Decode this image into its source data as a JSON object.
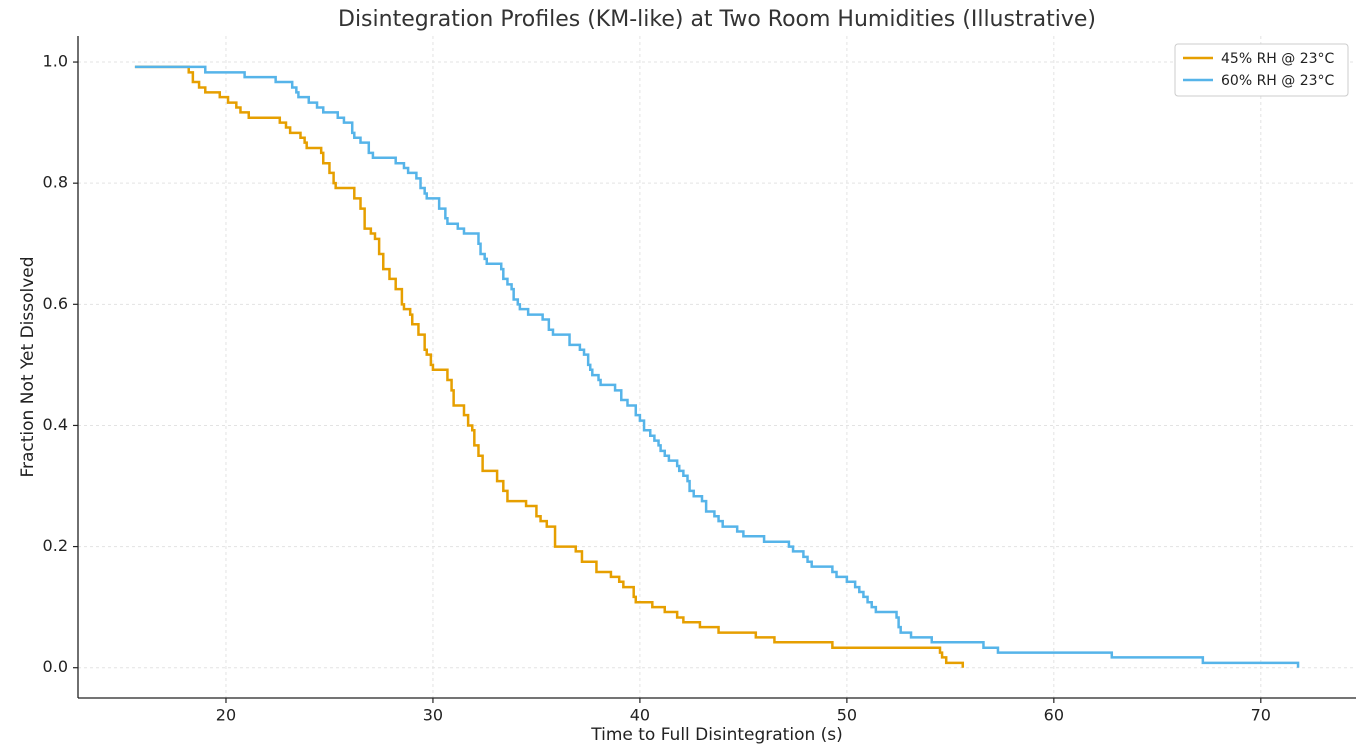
{
  "chart_data": {
    "type": "step",
    "title": "Disintegration Profiles (KM-like) at Two Room Humidities (Illustrative)",
    "x_label": "Time to Full Disintegration (s)",
    "y_label": "Fraction Not Yet Dissolved",
    "xlim": [
      12.85,
      74.6
    ],
    "ylim": [
      -0.05,
      1.043
    ],
    "xticks": [
      20,
      30,
      40,
      50,
      60,
      70
    ],
    "yticks": [
      {
        "value": 0,
        "label": "0.0"
      },
      0.2,
      0.4,
      0.6,
      0.8,
      {
        "value": 1,
        "label": "1.0"
      }
    ],
    "grid": true,
    "legend": "upper right",
    "series": [
      {
        "name": "45% RH @ 23°C",
        "color": "#e69f00",
        "x": [
          15.6,
          18.2,
          18.4,
          18.7,
          19.0,
          19.7,
          20.1,
          20.5,
          20.7,
          21.1,
          22.6,
          22.9,
          23.1,
          23.6,
          23.8,
          23.9,
          24.6,
          24.7,
          25.0,
          25.2,
          25.3,
          26.2,
          26.5,
          26.7,
          27.0,
          27.2,
          27.4,
          27.6,
          27.9,
          28.2,
          28.5,
          28.6,
          28.9,
          29.0,
          29.3,
          29.6,
          29.7,
          29.9,
          30.0,
          30.7,
          30.9,
          31.0,
          31.5,
          31.7,
          31.9,
          32.0,
          32.2,
          32.4,
          33.1,
          33.4,
          33.6,
          34.5,
          35.0,
          35.2,
          35.5,
          35.9,
          36.9,
          37.2,
          37.9,
          38.6,
          39.0,
          39.2,
          39.7,
          39.8,
          40.6,
          41.2,
          41.8,
          42.1,
          42.9,
          43.8,
          45.6,
          46.5,
          49.3,
          54.5,
          54.6,
          54.8,
          55.6
        ],
        "values": [
          0.992,
          0.983,
          0.967,
          0.958,
          0.95,
          0.942,
          0.933,
          0.925,
          0.917,
          0.908,
          0.9,
          0.892,
          0.883,
          0.875,
          0.867,
          0.858,
          0.85,
          0.833,
          0.817,
          0.8,
          0.792,
          0.775,
          0.758,
          0.725,
          0.717,
          0.708,
          0.683,
          0.658,
          0.642,
          0.625,
          0.6,
          0.592,
          0.583,
          0.567,
          0.55,
          0.525,
          0.517,
          0.5,
          0.492,
          0.475,
          0.458,
          0.433,
          0.417,
          0.4,
          0.392,
          0.367,
          0.35,
          0.325,
          0.308,
          0.292,
          0.275,
          0.267,
          0.25,
          0.242,
          0.233,
          0.2,
          0.192,
          0.175,
          0.158,
          0.15,
          0.142,
          0.133,
          0.117,
          0.108,
          0.1,
          0.092,
          0.083,
          0.075,
          0.067,
          0.058,
          0.05,
          0.042,
          0.033,
          0.025,
          0.017,
          0.008,
          0.0
        ]
      },
      {
        "name": "60% RH @ 23°C",
        "color": "#56b4e9",
        "x": [
          15.6,
          19.0,
          20.9,
          22.4,
          23.2,
          23.4,
          23.5,
          24.0,
          24.4,
          24.7,
          25.4,
          25.7,
          26.1,
          26.2,
          26.5,
          26.9,
          27.1,
          28.2,
          28.6,
          28.8,
          29.2,
          29.4,
          29.6,
          29.7,
          30.3,
          30.6,
          30.7,
          31.2,
          31.5,
          32.2,
          32.3,
          32.5,
          32.6,
          33.3,
          33.4,
          33.6,
          33.8,
          33.9,
          34.1,
          34.2,
          34.6,
          35.3,
          35.6,
          35.8,
          36.6,
          37.1,
          37.3,
          37.5,
          37.6,
          37.7,
          38.0,
          38.1,
          38.8,
          39.1,
          39.4,
          39.8,
          40.0,
          40.2,
          40.5,
          40.7,
          40.9,
          41.0,
          41.2,
          41.4,
          41.8,
          41.9,
          42.1,
          42.3,
          42.4,
          42.6,
          43.0,
          43.2,
          43.6,
          43.8,
          44.0,
          44.7,
          45.0,
          46.0,
          47.2,
          47.4,
          47.9,
          48.1,
          48.3,
          49.3,
          49.5,
          50.0,
          50.4,
          50.6,
          50.8,
          51.0,
          51.2,
          51.4,
          52.4,
          52.5,
          52.6,
          53.1,
          54.1,
          56.6,
          57.3,
          62.8,
          67.2,
          71.8
        ],
        "values": [
          0.992,
          0.983,
          0.975,
          0.967,
          0.958,
          0.95,
          0.942,
          0.933,
          0.925,
          0.917,
          0.908,
          0.9,
          0.883,
          0.875,
          0.867,
          0.85,
          0.842,
          0.833,
          0.825,
          0.817,
          0.808,
          0.792,
          0.783,
          0.775,
          0.758,
          0.742,
          0.733,
          0.725,
          0.717,
          0.7,
          0.683,
          0.675,
          0.667,
          0.658,
          0.642,
          0.633,
          0.625,
          0.608,
          0.6,
          0.592,
          0.583,
          0.575,
          0.558,
          0.55,
          0.533,
          0.525,
          0.517,
          0.5,
          0.492,
          0.483,
          0.475,
          0.467,
          0.458,
          0.442,
          0.433,
          0.417,
          0.408,
          0.392,
          0.383,
          0.375,
          0.367,
          0.358,
          0.35,
          0.342,
          0.333,
          0.325,
          0.317,
          0.308,
          0.292,
          0.283,
          0.275,
          0.258,
          0.25,
          0.242,
          0.233,
          0.225,
          0.217,
          0.208,
          0.2,
          0.192,
          0.183,
          0.175,
          0.167,
          0.158,
          0.15,
          0.142,
          0.133,
          0.125,
          0.117,
          0.108,
          0.1,
          0.092,
          0.083,
          0.067,
          0.058,
          0.05,
          0.042,
          0.033,
          0.025,
          0.017,
          0.008,
          0.0
        ]
      }
    ]
  }
}
